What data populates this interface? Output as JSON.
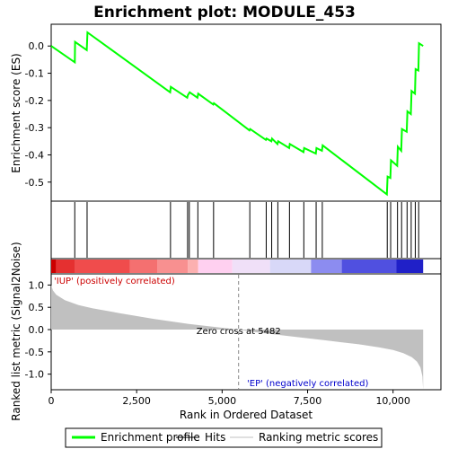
{
  "chart_data": {
    "type": "line",
    "title": "Enrichment plot: MODULE_453",
    "panels": {
      "enrichment": {
        "ylabel": "Enrichment score (ES)",
        "ylim": [
          -0.57,
          0.08
        ],
        "yticks": [
          0.0,
          -0.1,
          -0.2,
          -0.3,
          -0.4,
          -0.5
        ],
        "ytick_labels": [
          "0.0",
          "-0.1",
          "-0.2",
          "-0.3",
          "-0.4",
          "-0.5"
        ],
        "series_name": "Enrichment profile",
        "color": "#00ff00",
        "points": [
          [
            0,
            0.0
          ],
          [
            690,
            -0.06
          ],
          [
            700,
            0.015
          ],
          [
            1040,
            -0.015
          ],
          [
            1060,
            0.05
          ],
          [
            3480,
            -0.17
          ],
          [
            3500,
            -0.15
          ],
          [
            3980,
            -0.19
          ],
          [
            4000,
            -0.18
          ],
          [
            4050,
            -0.17
          ],
          [
            4280,
            -0.19
          ],
          [
            4300,
            -0.175
          ],
          [
            4740,
            -0.215
          ],
          [
            4760,
            -0.21
          ],
          [
            5800,
            -0.31
          ],
          [
            5820,
            -0.305
          ],
          [
            6280,
            -0.345
          ],
          [
            6300,
            -0.34
          ],
          [
            6440,
            -0.35
          ],
          [
            6460,
            -0.34
          ],
          [
            6620,
            -0.36
          ],
          [
            6640,
            -0.35
          ],
          [
            6960,
            -0.375
          ],
          [
            6980,
            -0.36
          ],
          [
            7380,
            -0.39
          ],
          [
            7400,
            -0.375
          ],
          [
            7740,
            -0.395
          ],
          [
            7760,
            -0.375
          ],
          [
            7920,
            -0.385
          ],
          [
            7940,
            -0.365
          ],
          [
            9820,
            -0.545
          ],
          [
            9840,
            -0.48
          ],
          [
            9920,
            -0.485
          ],
          [
            9940,
            -0.42
          ],
          [
            10120,
            -0.44
          ],
          [
            10140,
            -0.37
          ],
          [
            10240,
            -0.385
          ],
          [
            10260,
            -0.305
          ],
          [
            10400,
            -0.315
          ],
          [
            10420,
            -0.24
          ],
          [
            10520,
            -0.25
          ],
          [
            10540,
            -0.165
          ],
          [
            10640,
            -0.175
          ],
          [
            10660,
            -0.085
          ],
          [
            10740,
            -0.09
          ],
          [
            10760,
            0.01
          ],
          [
            10880,
            0.0
          ]
        ]
      },
      "hits": {
        "positions": [
          690,
          1050,
          3490,
          3990,
          4040,
          4290,
          4750,
          5810,
          6290,
          6450,
          6630,
          6970,
          7390,
          7750,
          7930,
          9830,
          9930,
          10130,
          10250,
          10410,
          10530,
          10650,
          10750
        ]
      },
      "ranked_metric": {
        "ylabel": "Ranked list metric (Signal2Noise)",
        "ylim": [
          -1.35,
          1.25
        ],
        "yticks": [
          1.0,
          0.5,
          0.0,
          -0.5,
          -1.0
        ],
        "ytick_labels": [
          "1.0",
          "0.5",
          "0.0",
          "-0.5",
          "-1.0"
        ],
        "profile": [
          [
            0,
            1.0
          ],
          [
            50,
            0.88
          ],
          [
            150,
            0.78
          ],
          [
            400,
            0.66
          ],
          [
            800,
            0.55
          ],
          [
            1200,
            0.48
          ],
          [
            2000,
            0.37
          ],
          [
            3000,
            0.24
          ],
          [
            4000,
            0.13
          ],
          [
            5000,
            0.04
          ],
          [
            5482,
            0.0
          ],
          [
            6000,
            -0.06
          ],
          [
            7000,
            -0.15
          ],
          [
            8000,
            -0.24
          ],
          [
            9000,
            -0.33
          ],
          [
            9600,
            -0.4
          ],
          [
            10000,
            -0.46
          ],
          [
            10300,
            -0.53
          ],
          [
            10550,
            -0.62
          ],
          [
            10700,
            -0.72
          ],
          [
            10800,
            -0.85
          ],
          [
            10860,
            -1.05
          ],
          [
            10880,
            -1.35
          ]
        ],
        "zero_cross": 5482,
        "zero_cross_label": "Zero cross at 5482",
        "pos_label": "'IUP' (positively correlated)",
        "neg_label": "'EP' (negatively correlated)",
        "pos_color": "#cc0000",
        "neg_color": "#0000cc"
      }
    },
    "xlabel": "Rank in Ordered Dataset",
    "xlim": [
      0,
      11400
    ],
    "xticks": [
      0,
      2500,
      5000,
      7500,
      10000
    ],
    "xtick_labels": [
      "0",
      "2,500",
      "5,000",
      "7,500",
      "10,000"
    ],
    "n_genes": 10880,
    "heatmap_segments": [
      {
        "start": 0,
        "end": 150,
        "color": "#cc0000"
      },
      {
        "start": 150,
        "end": 700,
        "color": "#e53030"
      },
      {
        "start": 700,
        "end": 2300,
        "color": "#f04c4c"
      },
      {
        "start": 2300,
        "end": 3100,
        "color": "#f47070"
      },
      {
        "start": 3100,
        "end": 4000,
        "color": "#f89090"
      },
      {
        "start": 4000,
        "end": 4300,
        "color": "#fcb0b0"
      },
      {
        "start": 4300,
        "end": 5300,
        "color": "#ffd0f0"
      },
      {
        "start": 5300,
        "end": 6400,
        "color": "#f0e0f8"
      },
      {
        "start": 6400,
        "end": 7600,
        "color": "#d8d8f8"
      },
      {
        "start": 7600,
        "end": 8500,
        "color": "#8c8cf0"
      },
      {
        "start": 8500,
        "end": 10100,
        "color": "#5050e0"
      },
      {
        "start": 10100,
        "end": 10880,
        "color": "#2020c8"
      }
    ],
    "legend": {
      "position": "bottom",
      "items": [
        {
          "label": "Enrichment profile",
          "color": "#00ff00",
          "kind": "thick-line"
        },
        {
          "label": "Hits",
          "color": "#000000",
          "kind": "line"
        },
        {
          "label": "Ranking metric scores",
          "color": "#c0c0c0",
          "kind": "line"
        }
      ]
    },
    "grid": false
  }
}
